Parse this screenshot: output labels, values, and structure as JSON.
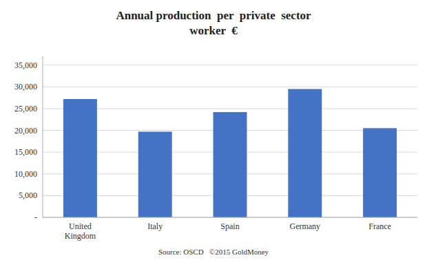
{
  "chart_data": {
    "type": "bar",
    "title": "Annual production  per  private  sector\nworker  €",
    "source": "Source: OSCD   ©2015 GoldMoney",
    "categories": [
      "United\nKingdom",
      "Italy",
      "Spain",
      "Germany",
      "France"
    ],
    "values": [
      27200,
      19700,
      24200,
      29500,
      20500
    ],
    "color": "#4472C4",
    "ylim": [
      0,
      37000
    ],
    "yticks": [
      {
        "value": 0,
        "label": "-"
      },
      {
        "value": 5000,
        "label": "5,000"
      },
      {
        "value": 10000,
        "label": "10,000"
      },
      {
        "value": 15000,
        "label": "15,000"
      },
      {
        "value": 20000,
        "label": "20,000"
      },
      {
        "value": 25000,
        "label": "25,000"
      },
      {
        "value": 30000,
        "label": "30,000"
      },
      {
        "value": 35000,
        "label": "35,000"
      }
    ],
    "grid": true
  }
}
